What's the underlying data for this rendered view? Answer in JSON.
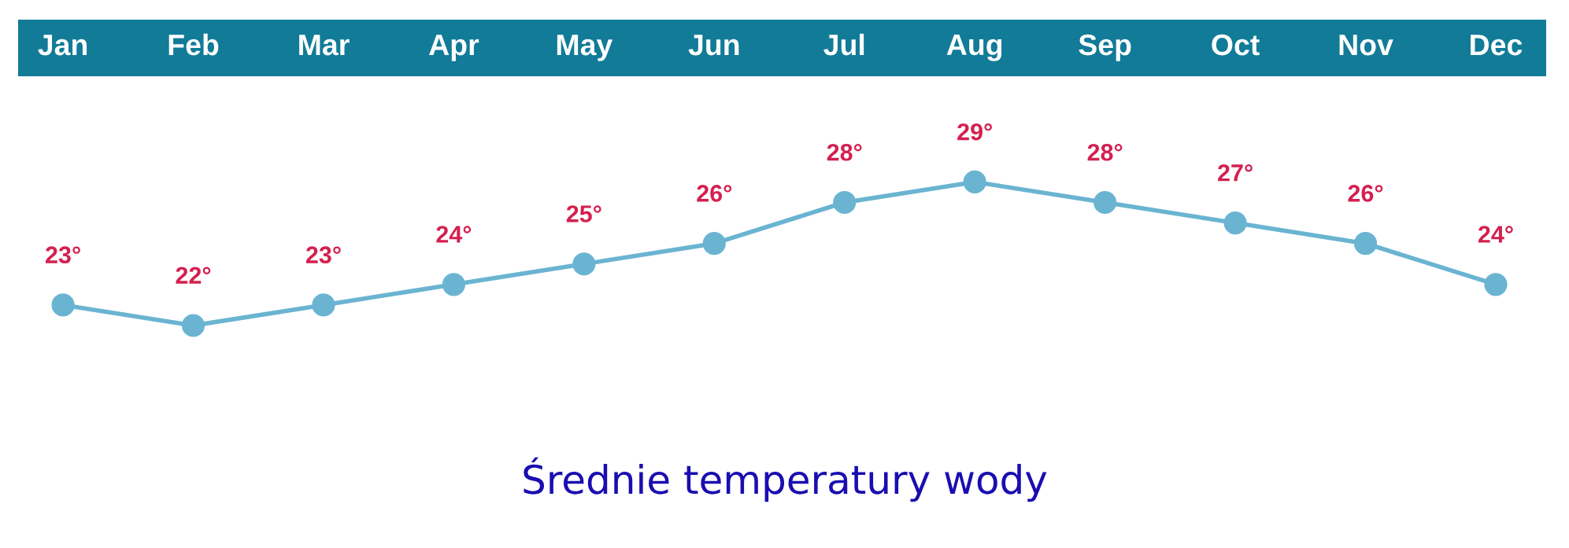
{
  "chart_data": {
    "type": "line",
    "title": "Średnie temperatury wody",
    "categories": [
      "Jan",
      "Feb",
      "Mar",
      "Apr",
      "May",
      "Jun",
      "Jul",
      "Aug",
      "Sep",
      "Oct",
      "Nov",
      "Dec"
    ],
    "series": [
      {
        "color": "#6ab4d2",
        "values": [
          23,
          22,
          23,
          24,
          25,
          26,
          28,
          29,
          28,
          27,
          26,
          24
        ],
        "value_labels": [
          "23°",
          "22°",
          "23°",
          "24°",
          "25°",
          "26°",
          "28°",
          "29°",
          "28°",
          "27°",
          "26°",
          "24°"
        ]
      }
    ],
    "marker": "circle",
    "line_style": "solid"
  }
}
